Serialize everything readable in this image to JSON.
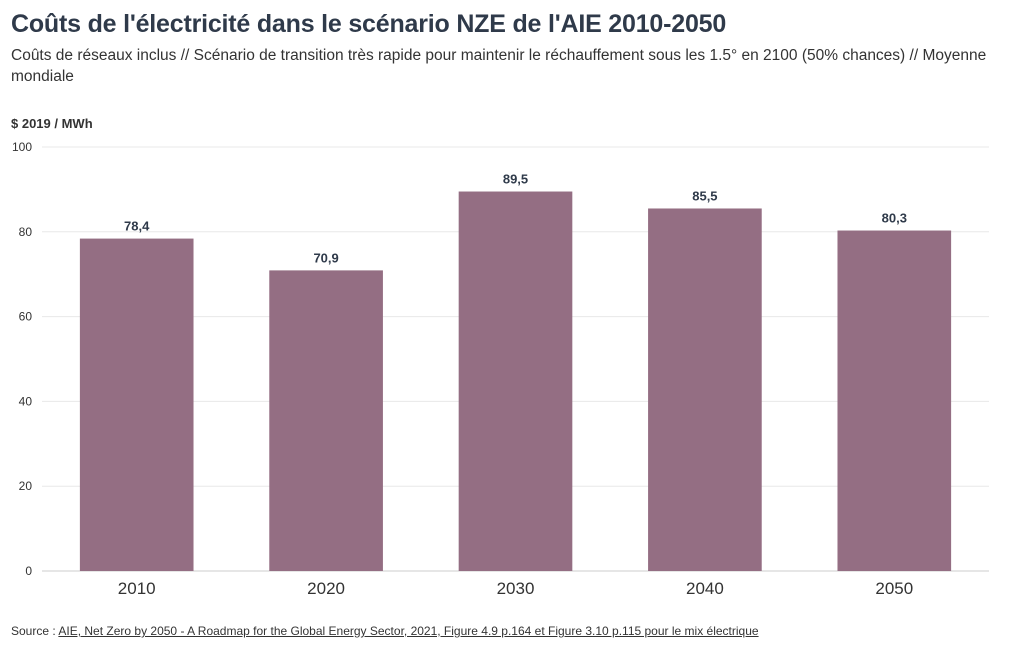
{
  "chart_data": {
    "type": "bar",
    "title": "Coûts de l'électricité dans le scénario NZE de l'AIE 2010-2050",
    "subtitle": "Coûts de réseaux inclus // Scénario de transition très rapide pour maintenir le réchauffement sous les 1.5° en 2100 (50% chances) // Moyenne mondiale",
    "ylabel": "$ 2019 / MWh",
    "xlabel": "",
    "categories": [
      "2010",
      "2020",
      "2030",
      "2040",
      "2050"
    ],
    "values": [
      78.4,
      70.9,
      89.5,
      85.5,
      80.3
    ],
    "value_labels": [
      "78,4",
      "70,9",
      "89,5",
      "85,5",
      "80,3"
    ],
    "ylim": [
      0,
      100
    ],
    "yticks": [
      0,
      20,
      40,
      60,
      80,
      100
    ],
    "grid": true,
    "legend": "none"
  },
  "colors": {
    "bar": "#946e83",
    "grid": "#e8e8e8",
    "title": "#2f3a4a",
    "value_label": "#2f3a4a"
  },
  "source": {
    "prefix": "Source : ",
    "link_text": "AIE, Net Zero by 2050 - A Roadmap for the Global Energy Sector, 2021, Figure 4.9 p.164 et Figure 3.10 p.115 pour le mix électrique"
  }
}
